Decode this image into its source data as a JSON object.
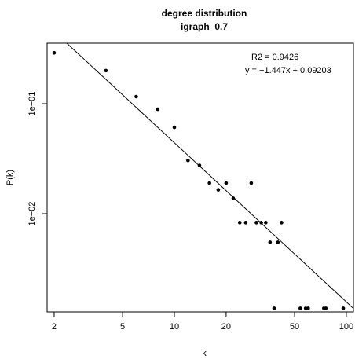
{
  "chart_data": {
    "type": "scatter",
    "title": "degree distribution",
    "subtitle": "igraph_0.7",
    "xlabel": "k",
    "ylabel": "P(k)",
    "x_scale": "log",
    "y_scale": "log",
    "xlim": [
      1.82,
      110
    ],
    "ylim": [
      0.00128,
      0.355
    ],
    "x_ticks": [
      {
        "value": 2,
        "label": "2"
      },
      {
        "value": 5,
        "label": "5"
      },
      {
        "value": 10,
        "label": "10"
      },
      {
        "value": 20,
        "label": "20"
      },
      {
        "value": 50,
        "label": "50"
      },
      {
        "value": 100,
        "label": "100"
      }
    ],
    "y_ticks": [
      {
        "value": 0.01,
        "label": "1e−02"
      },
      {
        "value": 0.1,
        "label": "1e−01"
      }
    ],
    "points": [
      {
        "x": 2,
        "y": 0.29
      },
      {
        "x": 4,
        "y": 0.2
      },
      {
        "x": 6,
        "y": 0.116
      },
      {
        "x": 8,
        "y": 0.089
      },
      {
        "x": 10,
        "y": 0.061
      },
      {
        "x": 12,
        "y": 0.0305
      },
      {
        "x": 14,
        "y": 0.0275
      },
      {
        "x": 16,
        "y": 0.019
      },
      {
        "x": 18,
        "y": 0.0165
      },
      {
        "x": 20,
        "y": 0.019
      },
      {
        "x": 22,
        "y": 0.0138
      },
      {
        "x": 24,
        "y": 0.0083
      },
      {
        "x": 26,
        "y": 0.0083
      },
      {
        "x": 28,
        "y": 0.019
      },
      {
        "x": 30,
        "y": 0.0083
      },
      {
        "x": 32,
        "y": 0.0083
      },
      {
        "x": 34,
        "y": 0.0083
      },
      {
        "x": 36,
        "y": 0.0055
      },
      {
        "x": 38,
        "y": 0.00138
      },
      {
        "x": 40,
        "y": 0.0055
      },
      {
        "x": 42,
        "y": 0.0083
      },
      {
        "x": 54,
        "y": 0.00138
      },
      {
        "x": 58,
        "y": 0.00138
      },
      {
        "x": 60,
        "y": 0.00138
      },
      {
        "x": 74,
        "y": 0.00138
      },
      {
        "x": 76,
        "y": 0.00138
      },
      {
        "x": 96,
        "y": 0.00138
      }
    ],
    "fit": {
      "slope": -1.447,
      "intercept": 0.09203
    },
    "annotations": {
      "r2": "R2 = 0.9426",
      "equation": "y = −1.447x + 0.09203"
    },
    "grid": false,
    "legend": "none",
    "colors": {
      "points": "#000000",
      "line": "#000000",
      "frame": "#000000"
    }
  }
}
